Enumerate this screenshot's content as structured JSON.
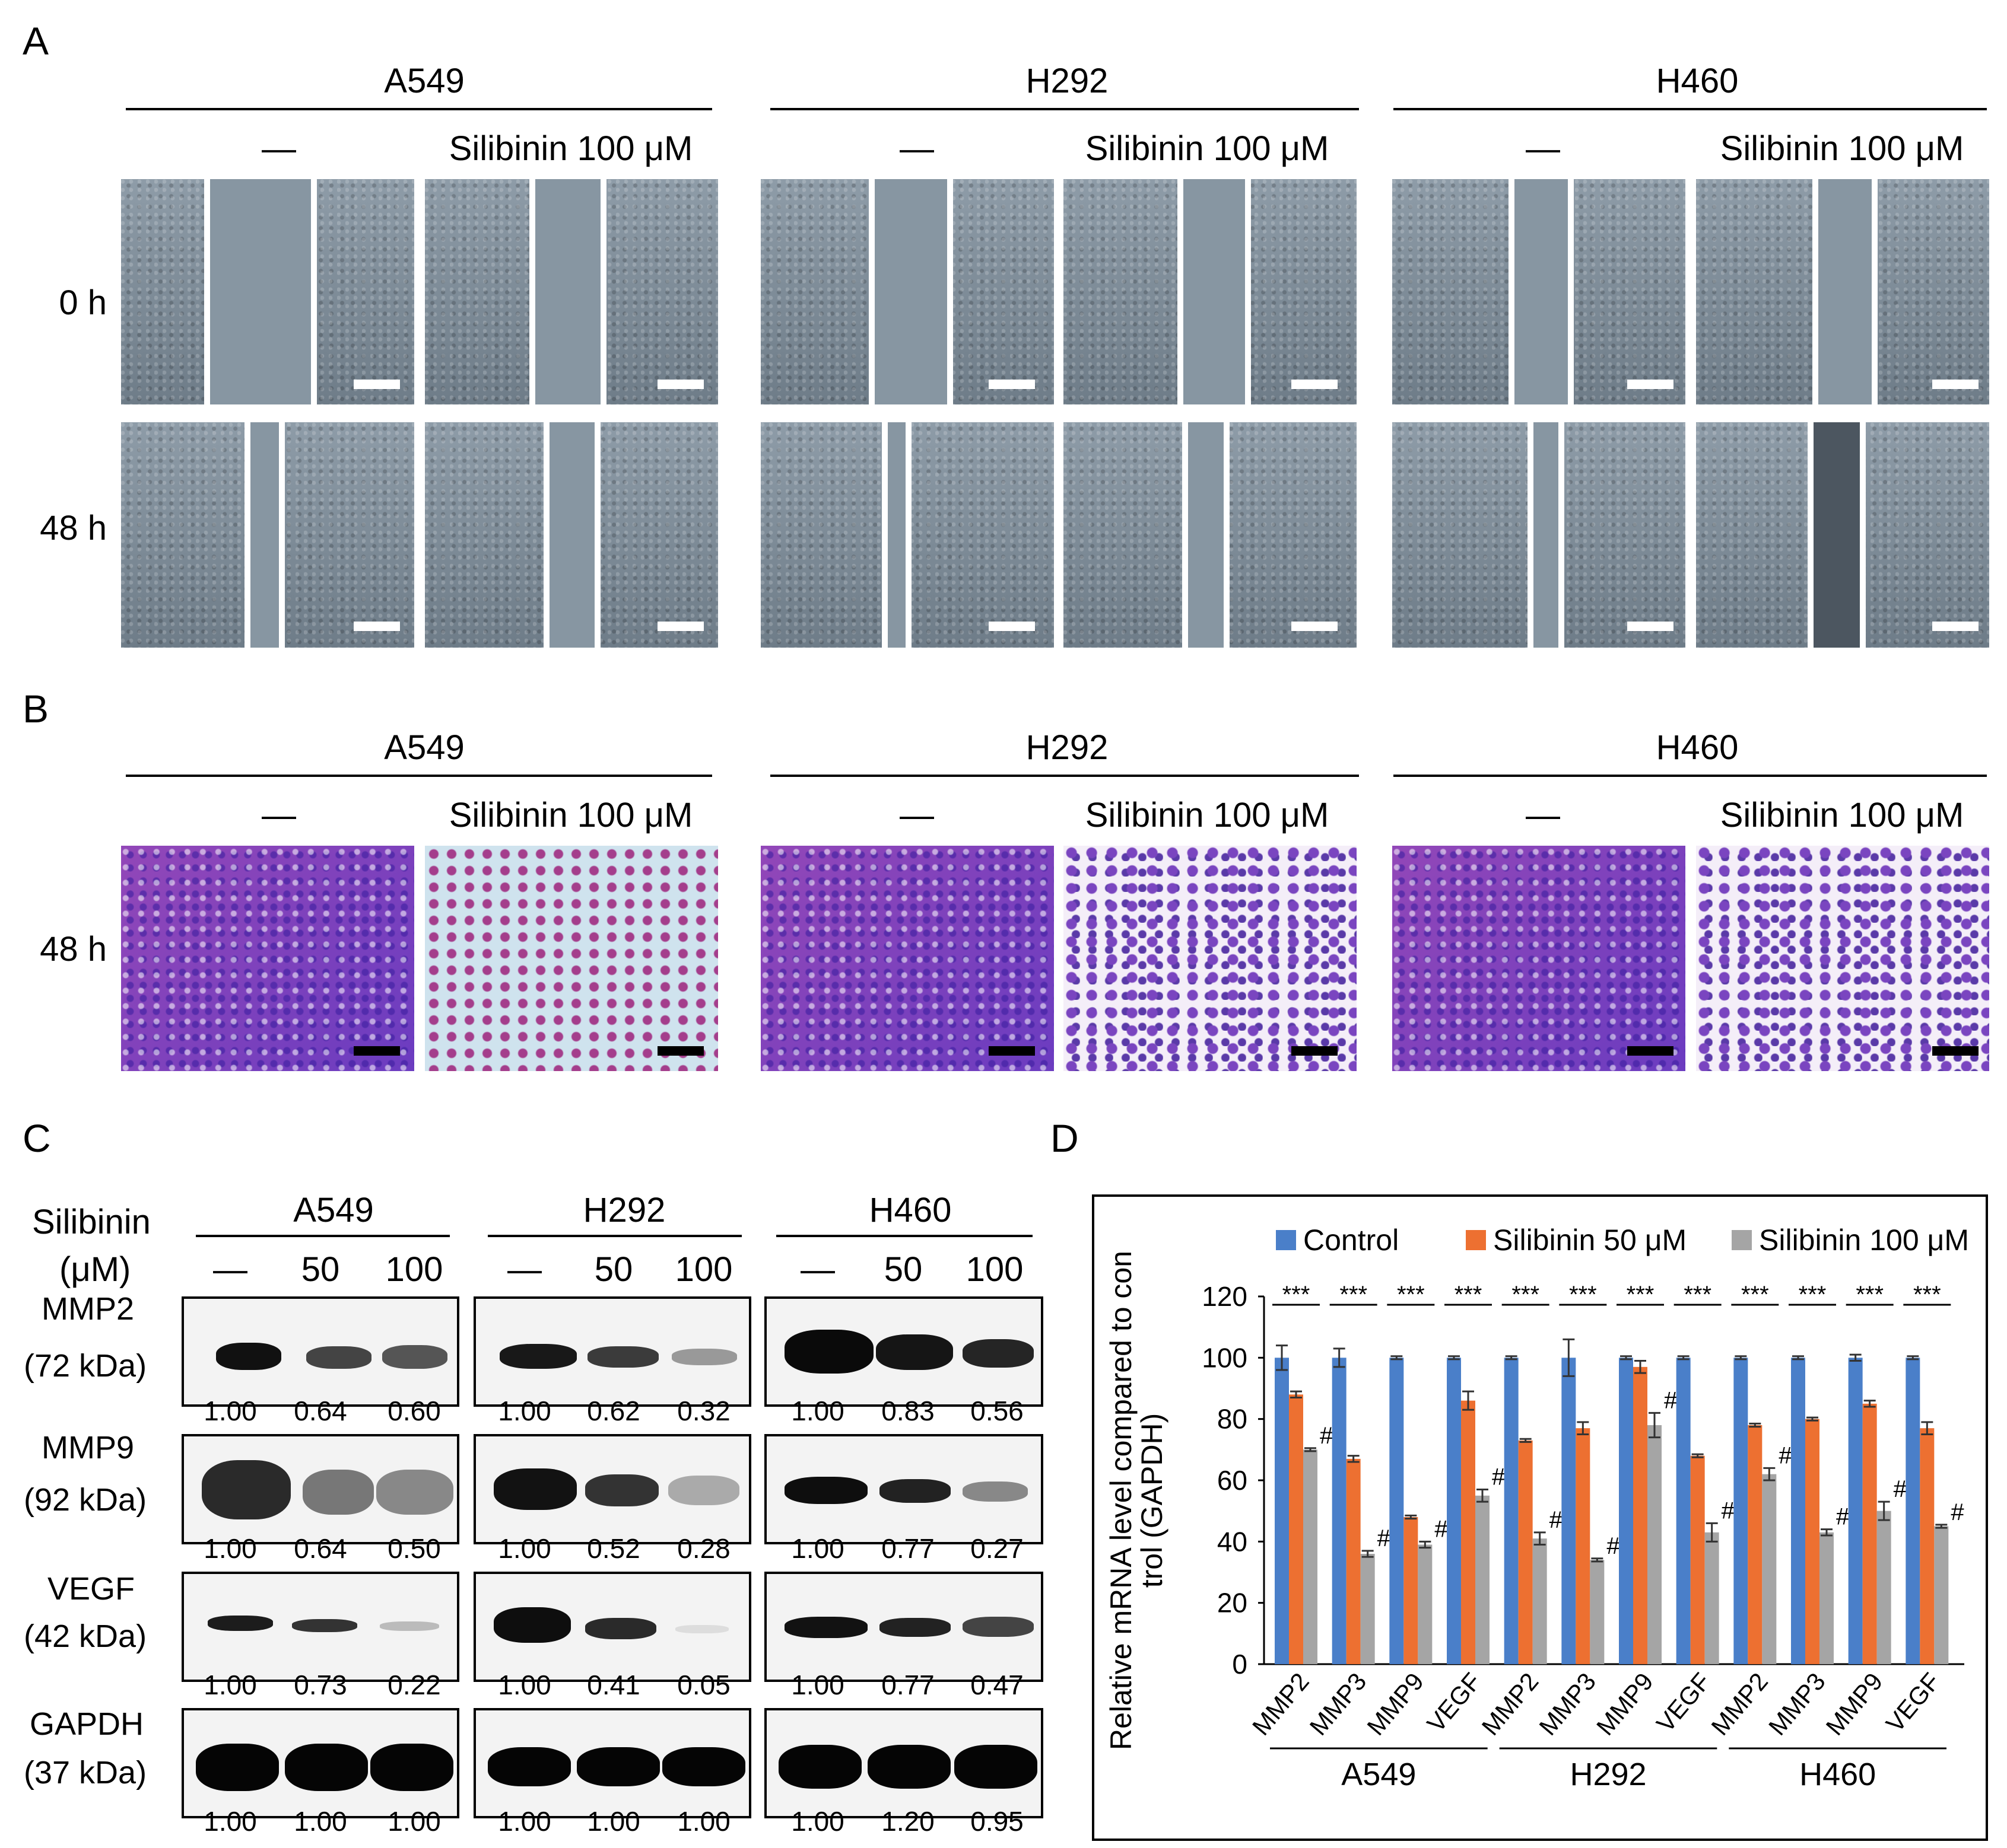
{
  "panels": {
    "a": "A",
    "b": "B",
    "c": "C",
    "d": "D"
  },
  "cell_lines": [
    "A549",
    "H292",
    "H460"
  ],
  "treatment": {
    "control": "—",
    "silibinin": "Silibinin 100 μM"
  },
  "time_labels": {
    "t0": "0 h",
    "t48": "48 h",
    "b48": "48 h"
  },
  "colors": {
    "wound_healing": "#7d8b97",
    "transwell": "#8a3bb0",
    "scale_white": "#ffffff",
    "scale_black": "#000000"
  },
  "blot": {
    "header_label": "Silibinin",
    "unit_label": "(μM)",
    "concentrations": [
      "—",
      "50",
      "100"
    ],
    "rows": [
      {
        "protein": "MMP2",
        "size": "(72 kDa)",
        "values": [
          [
            "1.00",
            "0.64",
            "0.60"
          ],
          [
            "1.00",
            "0.62",
            "0.32"
          ],
          [
            "1.00",
            "0.83",
            "0.56"
          ]
        ]
      },
      {
        "protein": "MMP9",
        "size": "(92 kDa)",
        "values": [
          [
            "1.00",
            "0.64",
            "0.50"
          ],
          [
            "1.00",
            "0.52",
            "0.28"
          ],
          [
            "1.00",
            "0.77",
            "0.27"
          ]
        ]
      },
      {
        "protein": "VEGF",
        "size": "(42 kDa)",
        "values": [
          [
            "1.00",
            "0.73",
            "0.22"
          ],
          [
            "1.00",
            "0.41",
            "0.05"
          ],
          [
            "1.00",
            "0.77",
            "0.47"
          ]
        ]
      },
      {
        "protein": "GAPDH",
        "size": "(37 kDa)",
        "values": [
          [
            "1.00",
            "1.00",
            "1.00"
          ],
          [
            "1.00",
            "1.00",
            "1.00"
          ],
          [
            "1.00",
            "1.20",
            "0.95"
          ]
        ]
      }
    ]
  },
  "chart_data": {
    "type": "bar",
    "ylabel_lines": [
      "Relative mRNA level compared to con",
      "trol (GAPDH)"
    ],
    "ylim": [
      0,
      120
    ],
    "yticks": [
      0,
      20,
      40,
      60,
      80,
      100,
      120
    ],
    "legend_position": "top",
    "categories": [
      "MMP2",
      "MMP3",
      "MMP9",
      "VEGF",
      "MMP2",
      "MMP3",
      "MMP9",
      "VEGF",
      "MMP2",
      "MMP3",
      "MMP9",
      "VEGF"
    ],
    "groups": [
      "A549",
      "H292",
      "H460"
    ],
    "significance": "***",
    "hash": "#",
    "series": [
      {
        "name": "Control",
        "color": "#4a7fc9",
        "values": [
          100,
          100,
          100,
          100,
          100,
          100,
          100,
          100,
          100,
          100,
          100,
          100
        ],
        "errors": [
          4,
          3,
          0.5,
          0.5,
          0.5,
          6,
          0.5,
          0.5,
          0.5,
          0.5,
          1,
          0.5
        ]
      },
      {
        "name": "Silibinin 50 μM",
        "color": "#ed7031",
        "values": [
          88,
          67,
          48,
          86,
          73,
          77,
          97,
          68,
          78,
          80,
          85,
          77
        ],
        "errors": [
          1,
          1,
          0.5,
          3,
          0.5,
          2,
          2,
          0.5,
          0.5,
          0.5,
          1,
          2
        ]
      },
      {
        "name": "Silibinin 100 μM",
        "color": "#a5a5a5",
        "values": [
          70,
          36,
          39,
          55,
          41,
          34,
          78,
          43,
          62,
          43,
          50,
          45
        ],
        "errors": [
          0.5,
          1,
          1,
          2,
          2,
          0.5,
          4,
          3,
          2,
          1,
          3,
          0.5
        ]
      }
    ]
  }
}
